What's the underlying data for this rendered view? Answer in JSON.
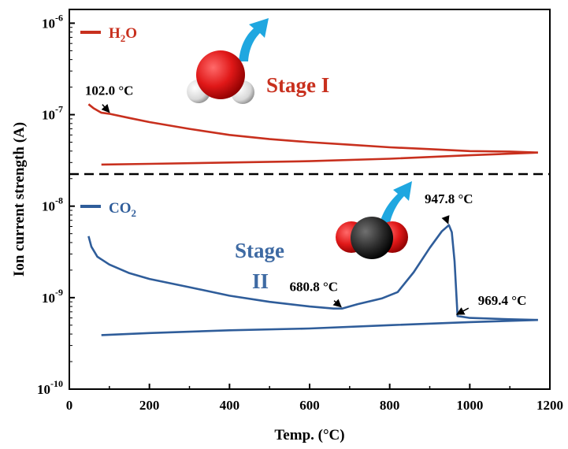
{
  "chart_data": {
    "type": "line",
    "xlabel": "Temp. (°C)",
    "ylabel": "Ion current strength (A)",
    "xlim": [
      0,
      1200
    ],
    "ylim_log10": [
      -10,
      -5.85
    ],
    "y_scale": "log",
    "x_ticks": [
      {
        "value": 0,
        "label": "0"
      },
      {
        "value": 200,
        "label": "200"
      },
      {
        "value": 400,
        "label": "400"
      },
      {
        "value": 600,
        "label": "600"
      },
      {
        "value": 800,
        "label": "800"
      },
      {
        "value": 1000,
        "label": "1000"
      },
      {
        "value": 1200,
        "label": "1200"
      }
    ],
    "y_ticks": [
      {
        "exp": -6,
        "base": "10",
        "sup": "-6"
      },
      {
        "exp": -7,
        "base": "10",
        "sup": "-7"
      },
      {
        "exp": -8,
        "base": "10",
        "sup": "-8"
      },
      {
        "exp": -9,
        "base": "10",
        "sup": "-9"
      },
      {
        "exp": -10,
        "base": "10",
        "sup": "-10"
      }
    ],
    "divider_exp": -7.65,
    "grid": false,
    "series": [
      {
        "name": "H2O",
        "color": "#c8301e",
        "heating": [
          [
            48,
            1.3e-07
          ],
          [
            60,
            1.18e-07
          ],
          [
            80,
            1.05e-07
          ],
          [
            102,
            1.02e-07
          ],
          [
            150,
            9.2e-08
          ],
          [
            200,
            8.3e-08
          ],
          [
            300,
            7e-08
          ],
          [
            400,
            6e-08
          ],
          [
            500,
            5.4e-08
          ],
          [
            600,
            5e-08
          ],
          [
            700,
            4.7e-08
          ],
          [
            800,
            4.4e-08
          ],
          [
            900,
            4.2e-08
          ],
          [
            1000,
            4e-08
          ],
          [
            1100,
            3.95e-08
          ],
          [
            1170,
            3.85e-08
          ]
        ],
        "cooling": [
          [
            1170,
            3.85e-08
          ],
          [
            1000,
            3.6e-08
          ],
          [
            800,
            3.3e-08
          ],
          [
            600,
            3.1e-08
          ],
          [
            400,
            3e-08
          ],
          [
            200,
            2.9e-08
          ],
          [
            80,
            2.85e-08
          ]
        ]
      },
      {
        "name": "CO2",
        "color": "#2f5d9a",
        "heating": [
          [
            48,
            4.7e-09
          ],
          [
            55,
            3.6e-09
          ],
          [
            70,
            2.8e-09
          ],
          [
            100,
            2.3e-09
          ],
          [
            150,
            1.85e-09
          ],
          [
            200,
            1.6e-09
          ],
          [
            300,
            1.3e-09
          ],
          [
            400,
            1.05e-09
          ],
          [
            500,
            9e-10
          ],
          [
            600,
            8e-10
          ],
          [
            660,
            7.6e-10
          ],
          [
            680.8,
            7.6e-10
          ],
          [
            720,
            8.5e-10
          ],
          [
            780,
            9.8e-10
          ],
          [
            820,
            1.15e-09
          ],
          [
            860,
            1.9e-09
          ],
          [
            900,
            3.5e-09
          ],
          [
            930,
            5.3e-09
          ],
          [
            947.8,
            6.2e-09
          ],
          [
            955,
            5.2e-09
          ],
          [
            962,
            2.5e-09
          ],
          [
            969.4,
            6.3e-10
          ],
          [
            1000,
            6e-10
          ],
          [
            1100,
            5.8e-10
          ],
          [
            1170,
            5.7e-10
          ]
        ],
        "cooling": [
          [
            1170,
            5.7e-10
          ],
          [
            1000,
            5.4e-10
          ],
          [
            800,
            5e-10
          ],
          [
            600,
            4.6e-10
          ],
          [
            400,
            4.4e-10
          ],
          [
            200,
            4.1e-10
          ],
          [
            80,
            3.9e-10
          ]
        ]
      }
    ],
    "legend": [
      {
        "label_base": "H",
        "label_sub": "2",
        "label_tail": "O",
        "color": "#c8301e"
      },
      {
        "label_base": "CO",
        "label_sub": "2",
        "label_tail": "",
        "color": "#2f5d9a"
      }
    ],
    "annotations": [
      {
        "text": "102.0 °C",
        "x": 102.0,
        "y": 1.02e-07
      },
      {
        "text": "680.8 °C",
        "x": 680.8,
        "y": 7.6e-10
      },
      {
        "text": "947.8 °C",
        "x": 947.8,
        "y": 6.2e-09
      },
      {
        "text": "969.4 °C",
        "x": 969.4,
        "y": 6.3e-10
      }
    ],
    "stage_labels": {
      "stage1": "Stage I",
      "stage2_line1": "Stage",
      "stage2_line2": "II"
    }
  }
}
